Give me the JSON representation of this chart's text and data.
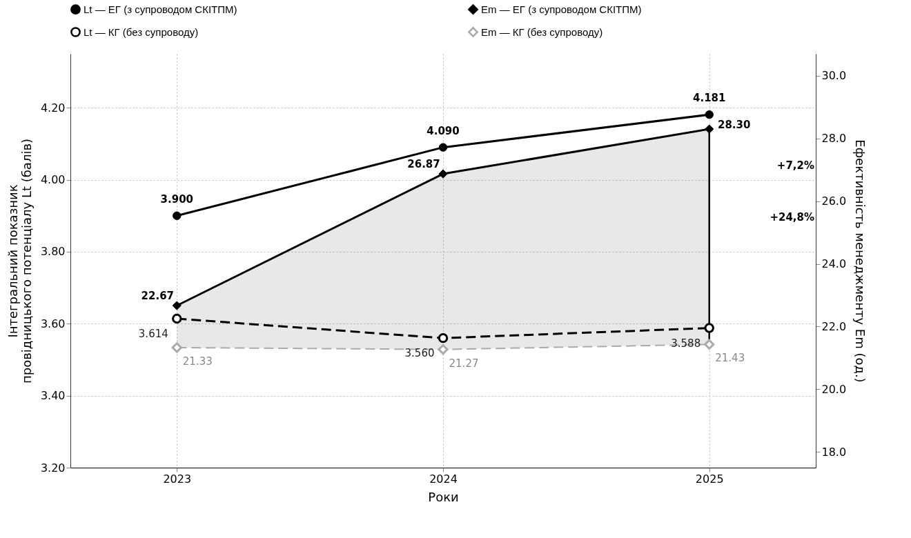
{
  "chart_data": {
    "type": "line",
    "xlabel": "Роки",
    "ylabel": "Інтегральний показник\nпровідницького потенціалу Lt (балів)",
    "y2label": "Ефективність менеджменту Em (од.)",
    "categories": [
      "2023",
      "2024",
      "2025"
    ],
    "ylim": [
      3.2,
      4.35
    ],
    "yticks": [
      {
        "value": 3.2,
        "label": "3.20"
      },
      {
        "value": 3.4,
        "label": "3.40"
      },
      {
        "value": 3.6,
        "label": "3.60"
      },
      {
        "value": 3.8,
        "label": "3.80"
      },
      {
        "value": 4.0,
        "label": "4.00"
      },
      {
        "value": 4.2,
        "label": "4.20"
      }
    ],
    "y2lim": [
      17.5,
      30.7
    ],
    "y2ticks": [
      {
        "value": 18,
        "label": "18.0"
      },
      {
        "value": 20,
        "label": "20.0"
      },
      {
        "value": 22,
        "label": "22.0"
      },
      {
        "value": 24,
        "label": "24.0"
      },
      {
        "value": 26,
        "label": "26.0"
      },
      {
        "value": 28,
        "label": "28.0"
      },
      {
        "value": 30,
        "label": "30.0"
      }
    ],
    "grid": true,
    "legend": "top",
    "series": [
      {
        "name": "Lt — ЕГ (з супроводом СКІТПМ)",
        "color": "#000000",
        "values": [
          3.9,
          4.09,
          4.181
        ],
        "value_labels": [
          "3.900",
          "4.090",
          "4.181"
        ],
        "marker": "circle",
        "line_style": "solid",
        "axis": "y"
      },
      {
        "name": "Em — ЕГ (з супроводом СКІТПМ)",
        "color": "#000000",
        "values": [
          22.67,
          26.87,
          28.3
        ],
        "value_labels": [
          "22.67",
          "26.87",
          "28.30"
        ],
        "marker": "diamond",
        "line_style": "solid",
        "axis": "y2",
        "lower": [
          21.33,
          21.27,
          21.43
        ],
        "upper": [
          22.67,
          26.87,
          28.3
        ]
      },
      {
        "name": "Lt — КГ (без супроводу)",
        "color": "#000000",
        "values": [
          3.614,
          3.56,
          3.588
        ],
        "value_labels": [
          "3.614",
          "3.560",
          "3.588"
        ],
        "marker": "circle",
        "line_style": "dashed",
        "axis": "y"
      },
      {
        "name": "Em — КГ (без супроводу)",
        "color": "#aaaaaa",
        "values": [
          21.33,
          21.27,
          21.43
        ],
        "value_labels": [
          "21.33",
          "21.27",
          "21.43"
        ],
        "marker": "diamond",
        "line_style": "dashed",
        "axis": "y2"
      }
    ],
    "annotations": [
      "+7,2%",
      "+24,8%"
    ]
  }
}
